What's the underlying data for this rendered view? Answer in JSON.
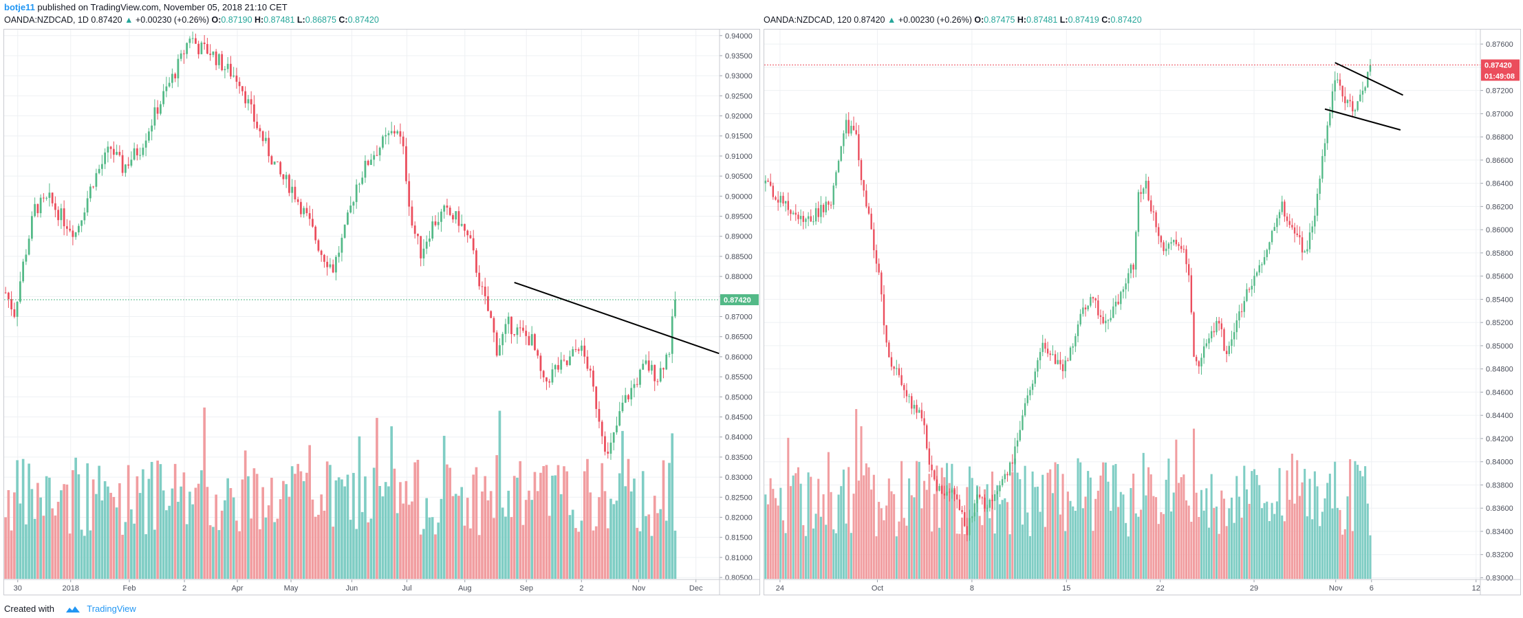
{
  "header": {
    "author": "botje11",
    "published_text": "published on TradingView.com, November 05, 2018 21:10 CET"
  },
  "footer": {
    "created_with": "Created with",
    "brand": "TradingView"
  },
  "colors": {
    "up": "#53b987",
    "down": "#eb4d5c",
    "vol_up": "#7fcdc4",
    "vol_down": "#f19da0",
    "grid": "#eef0f3",
    "price_line_left": "#53b987",
    "price_line_right": "#eb4d5c",
    "trendline": "#000000"
  },
  "chart_data": [
    {
      "type": "candlestick",
      "symbol": "OANDA:NZDCAD",
      "interval": "1D",
      "legend": {
        "symbol": "OANDA:NZDCAD, 1D",
        "last": "0.87420",
        "change": "+0.00230 (+0.26%)",
        "o_label": "O:",
        "o": "0.87190",
        "h_label": "H:",
        "h": "0.87481",
        "l_label": "L:",
        "l": "0.86875",
        "c_label": "C:",
        "c": "0.87420"
      },
      "ylim": [
        0.8045,
        0.9415
      ],
      "yticks": [
        "0.94000",
        "0.93500",
        "0.93000",
        "0.92500",
        "0.92000",
        "0.91500",
        "0.91000",
        "0.90500",
        "0.90000",
        "0.89500",
        "0.89000",
        "0.88500",
        "0.88000",
        "0.87500",
        "0.87000",
        "0.86500",
        "0.86000",
        "0.85500",
        "0.85000",
        "0.84500",
        "0.84000",
        "0.83500",
        "0.83000",
        "0.82500",
        "0.82000",
        "0.81500",
        "0.81000",
        "0.80500"
      ],
      "xticks": [
        {
          "label": "30",
          "frac": 0.019
        },
        {
          "label": "2018",
          "frac": 0.093
        },
        {
          "label": "Feb",
          "frac": 0.175
        },
        {
          "label": "2",
          "frac": 0.252
        },
        {
          "label": "Apr",
          "frac": 0.326
        },
        {
          "label": "May",
          "frac": 0.401
        },
        {
          "label": "Jun",
          "frac": 0.486
        },
        {
          "label": "Jul",
          "frac": 0.563
        },
        {
          "label": "Aug",
          "frac": 0.644
        },
        {
          "label": "Sep",
          "frac": 0.73
        },
        {
          "label": "2",
          "frac": 0.807
        },
        {
          "label": "Nov",
          "frac": 0.887
        },
        {
          "label": "Dec",
          "frac": 0.967
        }
      ],
      "last_price_label": "0.87420",
      "last_price": 0.8742,
      "waypoints": [
        [
          0,
          0.876
        ],
        [
          3,
          0.871
        ],
        [
          6,
          0.883
        ],
        [
          10,
          0.897
        ],
        [
          15,
          0.899
        ],
        [
          20,
          0.894
        ],
        [
          24,
          0.891
        ],
        [
          30,
          0.904
        ],
        [
          36,
          0.912
        ],
        [
          40,
          0.907
        ],
        [
          46,
          0.912
        ],
        [
          52,
          0.922
        ],
        [
          56,
          0.928
        ],
        [
          60,
          0.934
        ],
        [
          63,
          0.94
        ],
        [
          66,
          0.937
        ],
        [
          70,
          0.936
        ],
        [
          75,
          0.932
        ],
        [
          80,
          0.929
        ],
        [
          85,
          0.919
        ],
        [
          90,
          0.911
        ],
        [
          94,
          0.905
        ],
        [
          98,
          0.902
        ],
        [
          104,
          0.893
        ],
        [
          108,
          0.886
        ],
        [
          112,
          0.882
        ],
        [
          116,
          0.891
        ],
        [
          120,
          0.903
        ],
        [
          125,
          0.91
        ],
        [
          130,
          0.914
        ],
        [
          134,
          0.917
        ],
        [
          136,
          0.911
        ],
        [
          139,
          0.893
        ],
        [
          142,
          0.886
        ],
        [
          146,
          0.893
        ],
        [
          150,
          0.896
        ],
        [
          155,
          0.894
        ],
        [
          159,
          0.888
        ],
        [
          163,
          0.876
        ],
        [
          166,
          0.869
        ],
        [
          168,
          0.862
        ],
        [
          172,
          0.868
        ],
        [
          176,
          0.866
        ],
        [
          180,
          0.864
        ],
        [
          184,
          0.853
        ],
        [
          188,
          0.857
        ],
        [
          192,
          0.858
        ],
        [
          196,
          0.863
        ],
        [
          199,
          0.858
        ],
        [
          203,
          0.845
        ],
        [
          206,
          0.835
        ],
        [
          208,
          0.84
        ],
        [
          211,
          0.848
        ],
        [
          215,
          0.853
        ],
        [
          219,
          0.858
        ],
        [
          223,
          0.855
        ],
        [
          227,
          0.862
        ],
        [
          229,
          0.8742
        ]
      ],
      "trendline": {
        "x1": 174,
        "y1": 0.8785,
        "x2": 244,
        "y2": 0.8608
      }
    },
    {
      "type": "candlestick",
      "symbol": "OANDA:NZDCAD",
      "interval": "120",
      "legend": {
        "symbol": "OANDA:NZDCAD, 120",
        "last": "0.87420",
        "change": "+0.00230 (+0.26%)",
        "o_label": "O:",
        "o": "0.87475",
        "h_label": "H:",
        "h": "0.87481",
        "l_label": "L:",
        "l": "0.87419",
        "c_label": "C:",
        "c": "0.87420"
      },
      "ylim": [
        0.82985,
        0.87725
      ],
      "yticks": [
        "0.87600",
        "0.87400",
        "0.87200",
        "0.87000",
        "0.86800",
        "0.86600",
        "0.86400",
        "0.86200",
        "0.86000",
        "0.85800",
        "0.85600",
        "0.85400",
        "0.85200",
        "0.85000",
        "0.84800",
        "0.84600",
        "0.84400",
        "0.84200",
        "0.84000",
        "0.83800",
        "0.83600",
        "0.83400",
        "0.83200",
        "0.83000"
      ],
      "xticks": [
        {
          "label": "24",
          "frac": 0.022
        },
        {
          "label": "Oct",
          "frac": 0.158
        },
        {
          "label": "8",
          "frac": 0.29
        },
        {
          "label": "15",
          "frac": 0.422
        },
        {
          "label": "22",
          "frac": 0.553
        },
        {
          "label": "29",
          "frac": 0.684
        },
        {
          "label": "Nov",
          "frac": 0.798
        },
        {
          "label": "6",
          "frac": 0.848
        },
        {
          "label": "12",
          "frac": 0.994
        }
      ],
      "last_price_label": "0.87420",
      "countdown_label": "01:49:08",
      "last_price": 0.8742,
      "waypoints": [
        [
          0,
          0.864
        ],
        [
          8,
          0.862
        ],
        [
          16,
          0.8605
        ],
        [
          22,
          0.8618
        ],
        [
          26,
          0.8625
        ],
        [
          29,
          0.866
        ],
        [
          32,
          0.869
        ],
        [
          36,
          0.868
        ],
        [
          39,
          0.863
        ],
        [
          42,
          0.86
        ],
        [
          45,
          0.856
        ],
        [
          48,
          0.85
        ],
        [
          51,
          0.848
        ],
        [
          54,
          0.847
        ],
        [
          58,
          0.845
        ],
        [
          62,
          0.844
        ],
        [
          66,
          0.839
        ],
        [
          70,
          0.837
        ],
        [
          74,
          0.838
        ],
        [
          77,
          0.836
        ],
        [
          80,
          0.834
        ],
        [
          84,
          0.837
        ],
        [
          88,
          0.836
        ],
        [
          92,
          0.837
        ],
        [
          96,
          0.839
        ],
        [
          99,
          0.841
        ],
        [
          102,
          0.844
        ],
        [
          106,
          0.847
        ],
        [
          110,
          0.85
        ],
        [
          114,
          0.849
        ],
        [
          118,
          0.848
        ],
        [
          122,
          0.85
        ],
        [
          126,
          0.853
        ],
        [
          130,
          0.854
        ],
        [
          134,
          0.852
        ],
        [
          138,
          0.853
        ],
        [
          142,
          0.855
        ],
        [
          146,
          0.857
        ],
        [
          148,
          0.863
        ],
        [
          151,
          0.864
        ],
        [
          154,
          0.861
        ],
        [
          158,
          0.858
        ],
        [
          162,
          0.859
        ],
        [
          166,
          0.858
        ],
        [
          168,
          0.856
        ],
        [
          170,
          0.849
        ],
        [
          172,
          0.848
        ],
        [
          176,
          0.851
        ],
        [
          180,
          0.852
        ],
        [
          183,
          0.849
        ],
        [
          186,
          0.851
        ],
        [
          190,
          0.854
        ],
        [
          194,
          0.856
        ],
        [
          198,
          0.858
        ],
        [
          202,
          0.86
        ],
        [
          205,
          0.862
        ],
        [
          208,
          0.86
        ],
        [
          212,
          0.859
        ],
        [
          214,
          0.858
        ],
        [
          218,
          0.861
        ],
        [
          221,
          0.866
        ],
        [
          224,
          0.87
        ],
        [
          226,
          0.873
        ],
        [
          228,
          0.872
        ],
        [
          231,
          0.871
        ],
        [
          234,
          0.8705
        ],
        [
          237,
          0.8716
        ],
        [
          240,
          0.8742
        ]
      ],
      "trendline_upper": {
        "x1": 226,
        "y1": 0.8744,
        "x2": 253,
        "y2": 0.8716
      },
      "trendline_lower": {
        "x1": 222,
        "y1": 0.8704,
        "x2": 252,
        "y2": 0.8686
      }
    }
  ]
}
